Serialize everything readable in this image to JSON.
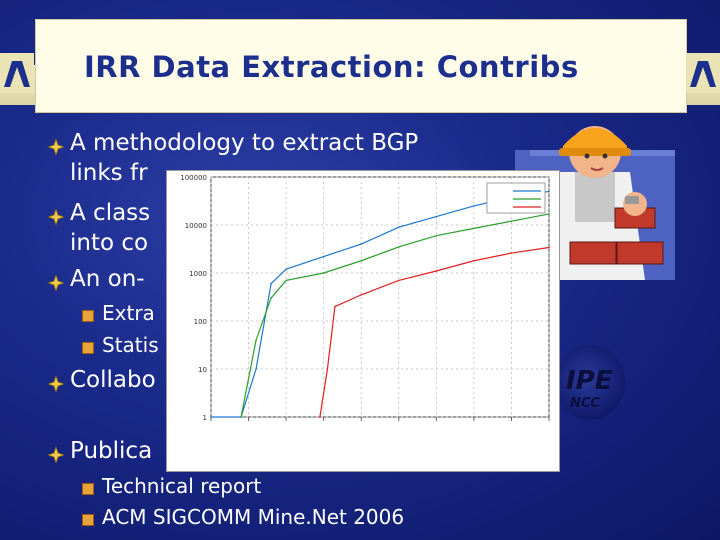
{
  "slide": {
    "title": "IRR Data Extraction: Contribs"
  },
  "bullets": [
    {
      "text": "A methodology to extract BGP",
      "level": 1
    },
    {
      "text": "links fr",
      "level": 1
    },
    {
      "text": "A class",
      "level": 1
    },
    {
      "text": "into co",
      "level": 1
    },
    {
      "text": "An on-",
      "level": 1
    },
    {
      "text": "Extra",
      "level": 2
    },
    {
      "text": "Statis",
      "level": 2
    },
    {
      "text": "Collabo",
      "level": 1
    },
    {
      "text": "Publica",
      "level": 1
    },
    {
      "text": "Technical report",
      "level": 2
    },
    {
      "text": "ACM SIGCOMM Mine.Net 2006",
      "level": 2
    }
  ],
  "logo": {
    "main": "IPE",
    "sub": "NCC"
  },
  "colors": {
    "background": "#1a2a8a",
    "title_text": "#1c2f8c",
    "title_box": "#fffde8",
    "bullet_text": "#ffffff",
    "series_ripe": "#1f77d0",
    "series_radb": "#2aa02a",
    "series_rir": "#e02020"
  },
  "chart_data": {
    "type": "line",
    "xlabel": "",
    "ylabel": "",
    "y_scale": "log",
    "ylim": [
      1,
      100000
    ],
    "y_ticks": [
      "1",
      "10",
      "100",
      "1000",
      "10000",
      "100000"
    ],
    "x_ticks": [
      "",
      "",
      "",
      "",
      "",
      "",
      "",
      "",
      "",
      ""
    ],
    "grid": true,
    "legend_position": "top-right",
    "series": [
      {
        "name": "",
        "color": "#1f77d0",
        "x": [
          0,
          0.8,
          1.2,
          1.6,
          2,
          3,
          4,
          5,
          6,
          7,
          8,
          9
        ],
        "values": [
          1,
          1,
          10,
          600,
          1200,
          2200,
          4000,
          9000,
          15000,
          25000,
          38000,
          50000
        ]
      },
      {
        "name": "",
        "color": "#2aa02a",
        "x": [
          0.8,
          1.2,
          1.6,
          2,
          3,
          4,
          5,
          6,
          7,
          8,
          9
        ],
        "values": [
          1,
          40,
          300,
          700,
          1000,
          1800,
          3500,
          6000,
          8500,
          12000,
          17000
        ]
      },
      {
        "name": "",
        "color": "#e02020",
        "x": [
          2.9,
          3.1,
          3.3,
          4,
          5,
          6,
          7,
          8,
          9
        ],
        "values": [
          1,
          10,
          200,
          350,
          700,
          1100,
          1800,
          2600,
          3400
        ]
      }
    ]
  }
}
